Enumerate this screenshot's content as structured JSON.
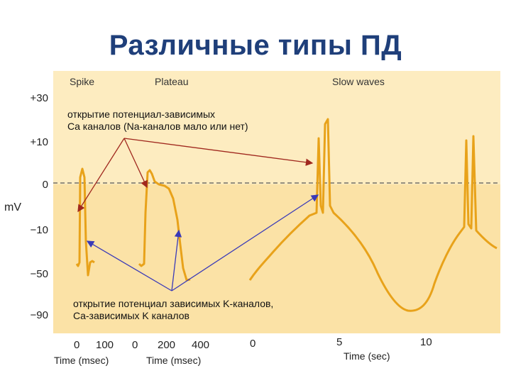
{
  "title": "Различные типы ПД",
  "y_axis": {
    "unit": "mV",
    "ticks": [
      "+30",
      "+10",
      "0",
      "−10",
      "−50",
      "−90"
    ]
  },
  "panels": [
    {
      "name": "Spike",
      "x_ticks": [
        "0",
        "100"
      ],
      "x_label": "Time (msec)"
    },
    {
      "name": "Plateau",
      "x_ticks": [
        "0",
        "200",
        "400"
      ],
      "x_label": "Time (msec)"
    },
    {
      "name": "Slow waves",
      "x_ticks": [
        "0",
        "5",
        "10"
      ],
      "x_label": "Time (sec)"
    }
  ],
  "annotations": {
    "top_line1": "открытие потенциал-зависимых",
    "top_line2": "Ca каналов (Na-каналов мало или нет)",
    "bottom_line1": "открытие потенциал зависимых K-каналов,",
    "bottom_line2": "Ca-зависимых K каналов"
  },
  "colors": {
    "title": "#1f3f7a",
    "trace": "#e8a21a",
    "panel_top": "#fdecc0",
    "panel_bottom": "#fbe2a6",
    "red_arrow": "#a0281e",
    "blue_arrow": "#3a3ab8"
  }
}
